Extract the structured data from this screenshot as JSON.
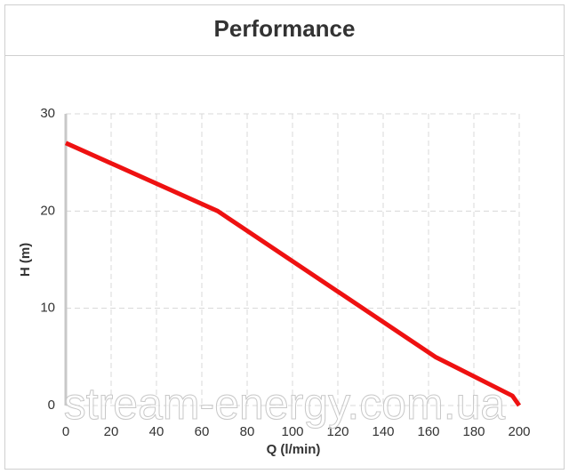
{
  "chart_data": {
    "type": "line",
    "title": "Performance",
    "x_label": "Q (l/min)",
    "y_label": "H (m)",
    "x": [
      0,
      67,
      163,
      197,
      200
    ],
    "series": [
      {
        "name": "H",
        "color": "#ee1111",
        "values": [
          27,
          20,
          5,
          1,
          0
        ]
      }
    ],
    "xlim": [
      0,
      200
    ],
    "xticks": [
      0,
      20,
      40,
      60,
      80,
      100,
      120,
      140,
      160,
      180,
      200
    ],
    "ylim": [
      0,
      30
    ],
    "yticks": [
      0,
      10,
      20,
      30
    ],
    "grid": true,
    "watermark": "stream-energy.com.ua"
  }
}
